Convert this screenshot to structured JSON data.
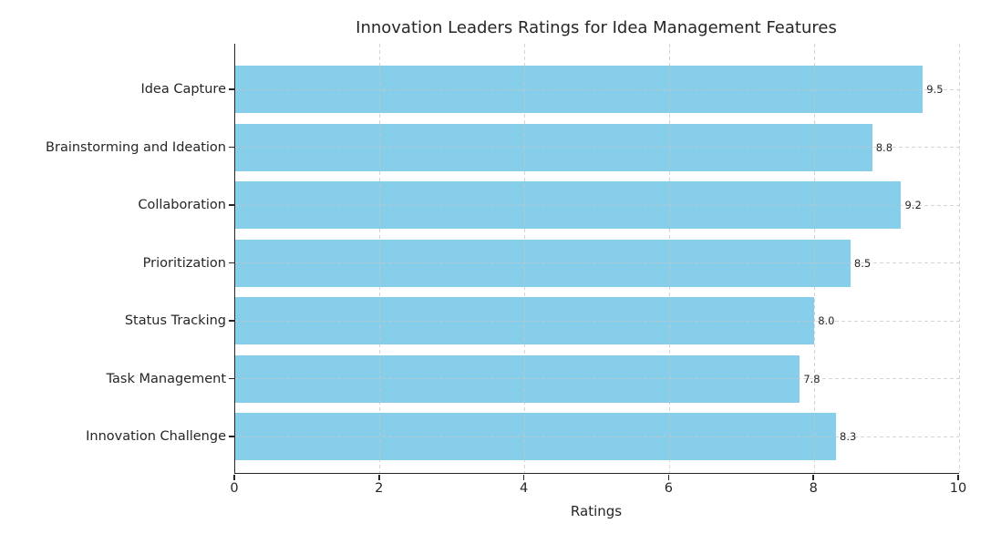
{
  "chart_data": {
    "type": "bar",
    "orientation": "horizontal",
    "title": "Innovation Leaders Ratings for Idea Management Features",
    "xlabel": "Ratings",
    "ylabel": "",
    "categories": [
      "Idea Capture",
      "Brainstorming and Ideation",
      "Collaboration",
      "Prioritization",
      "Status Tracking",
      "Task Management",
      "Innovation Challenge"
    ],
    "values": [
      9.5,
      8.8,
      9.2,
      8.5,
      8.0,
      7.8,
      8.3
    ],
    "value_labels": [
      "9.5",
      "8.8",
      "9.2",
      "8.5",
      "8.0",
      "7.8",
      "8.3"
    ],
    "xlim": [
      0,
      10
    ],
    "xticks": [
      0,
      2,
      4,
      6,
      8,
      10
    ],
    "xtick_labels": [
      "0",
      "2",
      "4",
      "6",
      "8",
      "10"
    ],
    "bar_color": "#87CEEB",
    "grid_color": "#c6c6c6",
    "grid_style": "dashed",
    "spine_color": "#262626",
    "text_color": "#262626",
    "legend": "none",
    "spines_visible": [
      "left",
      "bottom"
    ]
  }
}
